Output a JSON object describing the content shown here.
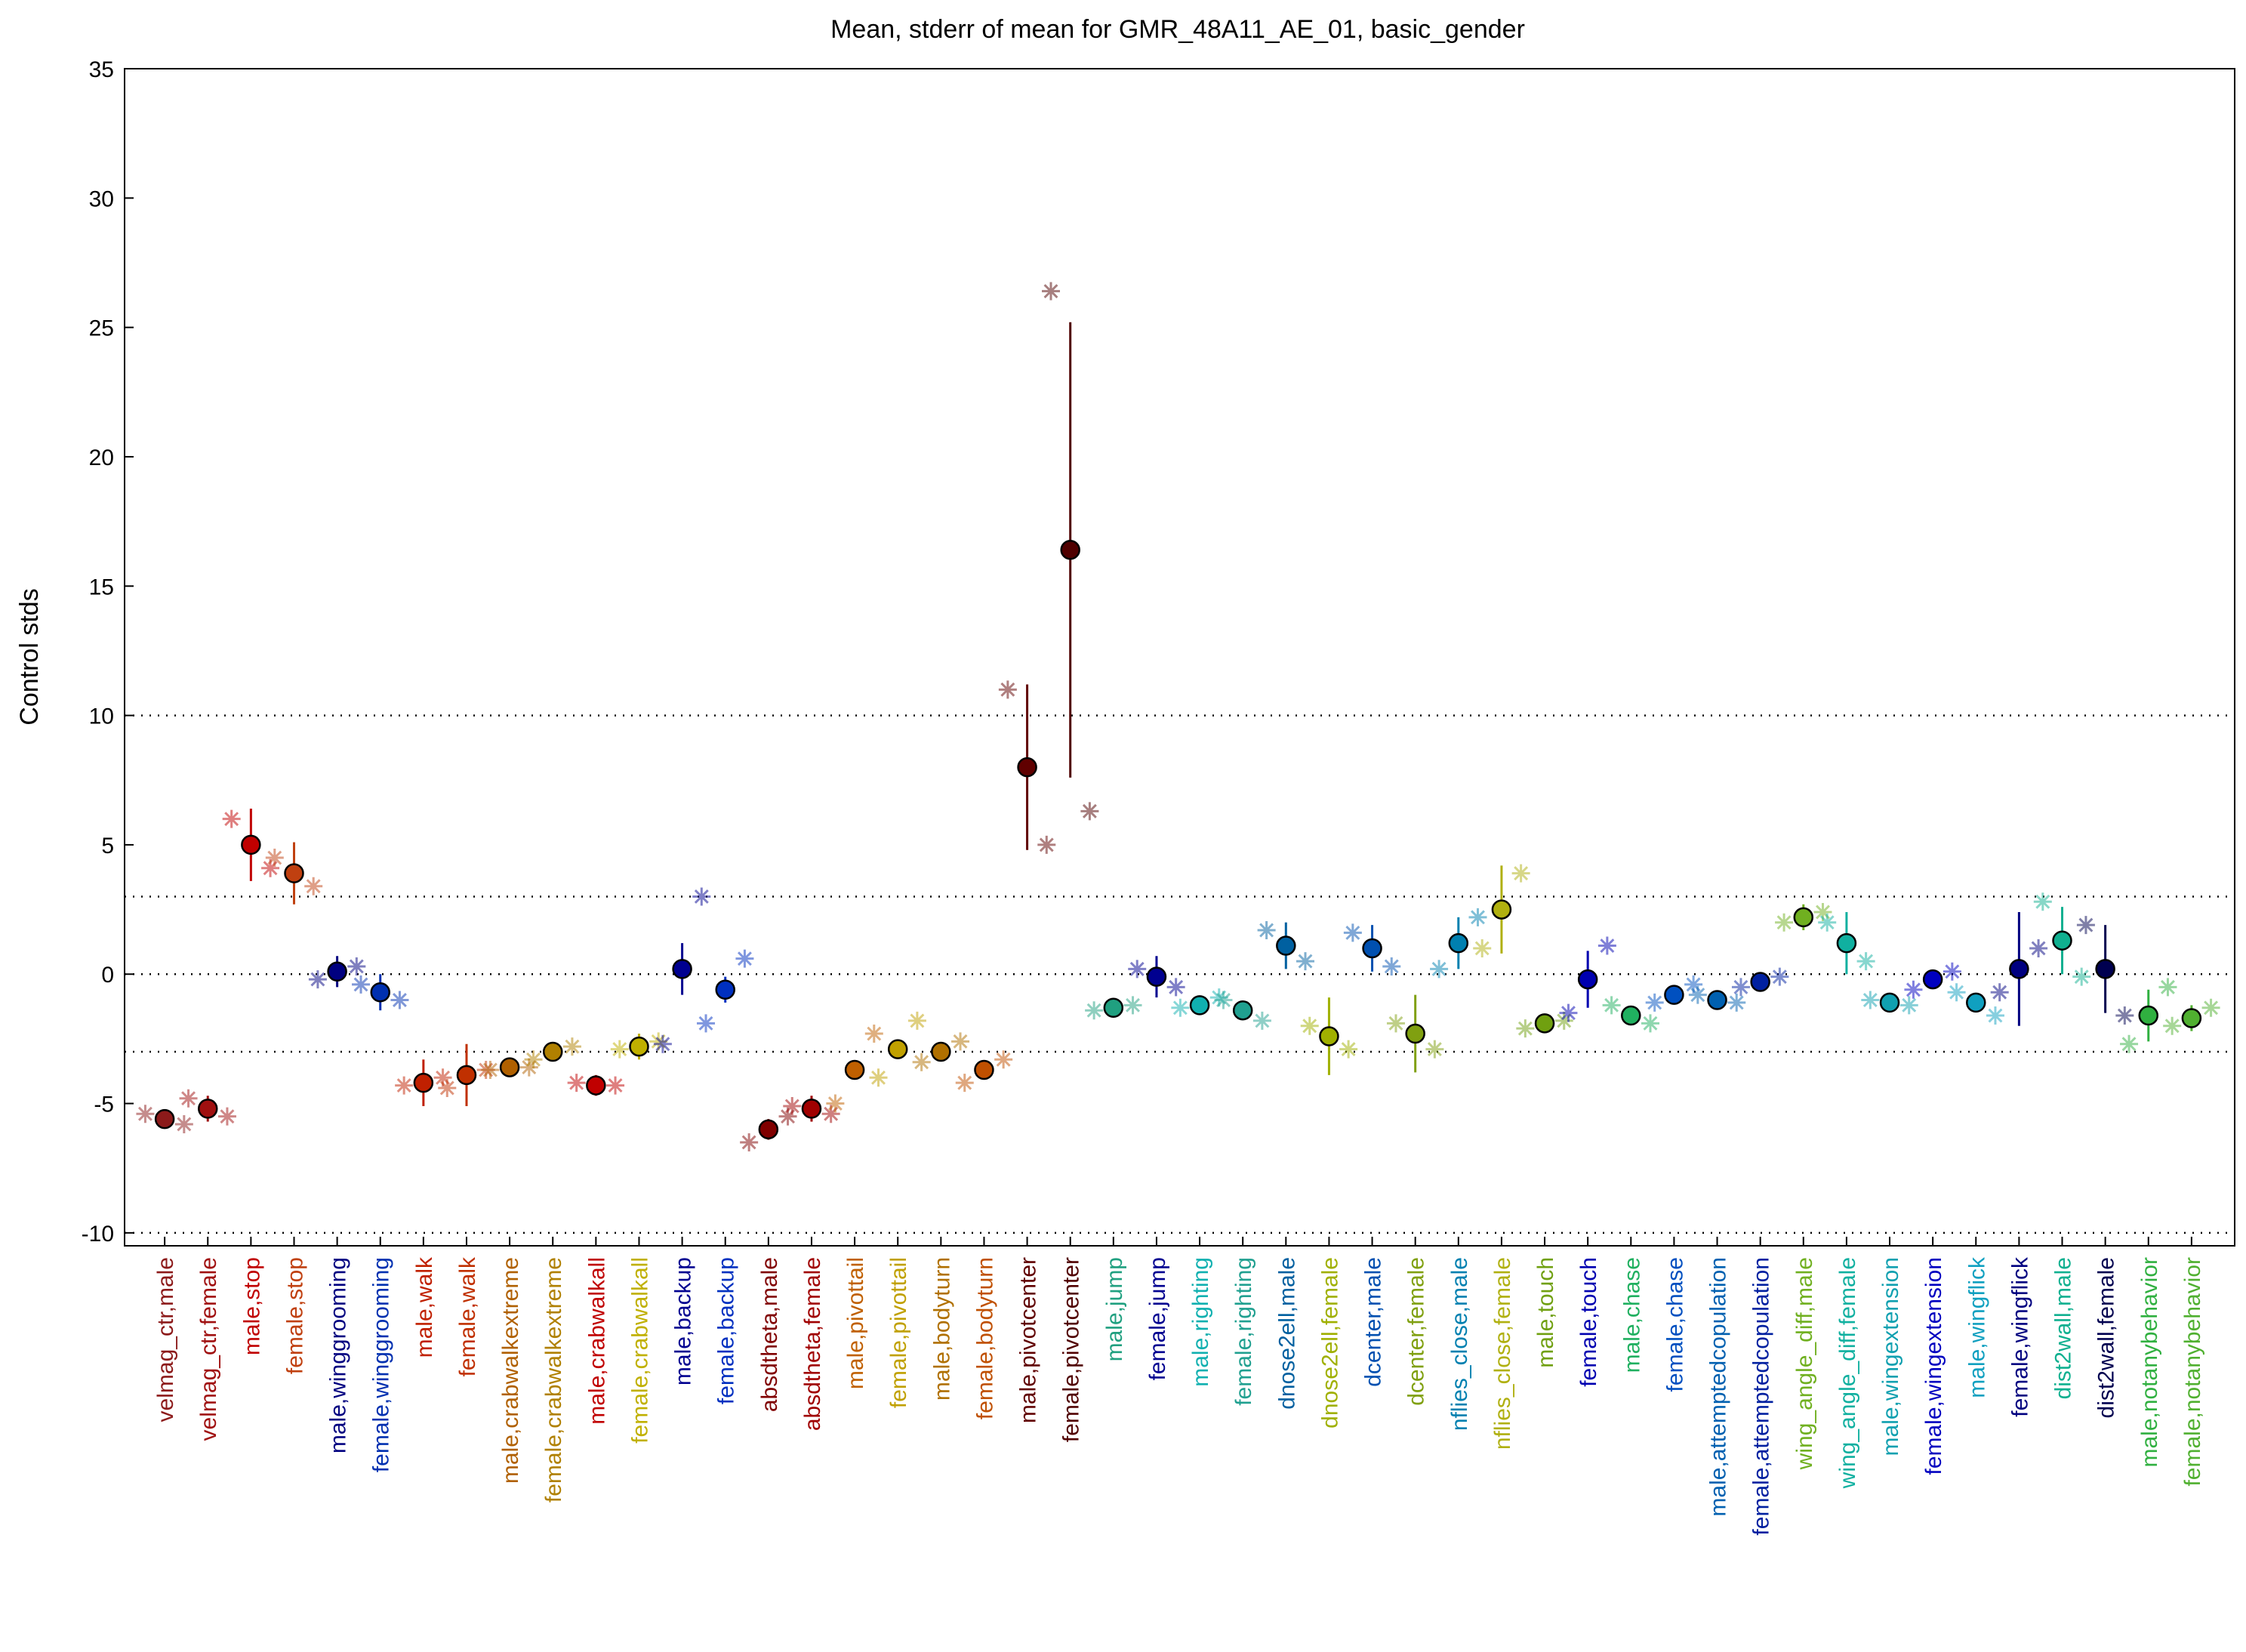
{
  "chart_data": {
    "type": "errorbar",
    "title": "Mean, stderr of mean for GMR_48A11_AE_01, basic_gender",
    "ylabel": "Control stds",
    "ylim": [
      -10.5,
      35
    ],
    "yticks": [
      -10,
      -5,
      0,
      5,
      10,
      15,
      20,
      25,
      30,
      35
    ],
    "hlines": [
      -10,
      -3,
      0,
      3,
      10
    ],
    "categories": [
      "velmag_ctr,male",
      "velmag_ctr,female",
      "male,stop",
      "female,stop",
      "male,winggrooming",
      "female,winggrooming",
      "male,walk",
      "female,walk",
      "male,crabwalkextreme",
      "female,crabwalkextreme",
      "male,crabwalkall",
      "female,crabwalkall",
      "male,backup",
      "female,backup",
      "absdtheta,male",
      "absdtheta,female",
      "male,pivottail",
      "female,pivottail",
      "male,bodyturn",
      "female,bodyturn",
      "male,pivotcenter",
      "female,pivotcenter",
      "male,jump",
      "female,jump",
      "male,righting",
      "female,righting",
      "dnose2ell,male",
      "dnose2ell,female",
      "dcenter,male",
      "dcenter,female",
      "nflies_close,male",
      "nflies_close,female",
      "male,touch",
      "female,touch",
      "male,chase",
      "female,chase",
      "male,attemptedcopulation",
      "female,attemptedcopulation",
      "wing_angle_diff,male",
      "wing_angle_diff,female",
      "male,wingextension",
      "female,wingextension",
      "male,wingflick",
      "female,wingflick",
      "dist2wall,male",
      "dist2wall,female",
      "male,notanybehavior",
      "female,notanybehavior"
    ],
    "colors": [
      "#8c1a1a",
      "#a01010",
      "#c00000",
      "#c04010",
      "#000080",
      "#0030b0",
      "#c02000",
      "#c03000",
      "#b06000",
      "#b08000",
      "#c00000",
      "#c0b000",
      "#000090",
      "#0030c0",
      "#800000",
      "#a00000",
      "#c06000",
      "#c0a000",
      "#b07000",
      "#c05000",
      "#600000",
      "#500000",
      "#20a080",
      "#000090",
      "#10b0b0",
      "#20a090",
      "#0060a0",
      "#a0b000",
      "#0050b0",
      "#80a010",
      "#0080b0",
      "#b0b010",
      "#70a010",
      "#0000b0",
      "#20b060",
      "#0050c0",
      "#0060b0",
      "#0020a0",
      "#70b020",
      "#10b0a0",
      "#10a0b0",
      "#0000c0",
      "#10a0c0",
      "#000080",
      "#10b090",
      "#000050",
      "#30b040",
      "#50b030"
    ],
    "values": [
      -5.6,
      -5.2,
      5.0,
      3.9,
      0.1,
      -0.7,
      -4.2,
      -3.9,
      -3.6,
      -3.0,
      -4.3,
      -2.8,
      0.2,
      -0.6,
      -6.0,
      -5.2,
      -3.7,
      -2.9,
      -3.0,
      -3.7,
      8.0,
      16.4,
      -1.3,
      -0.1,
      -1.2,
      -1.4,
      1.1,
      -2.4,
      1.0,
      -2.3,
      1.2,
      2.5,
      -1.9,
      -0.2,
      -1.6,
      -0.8,
      -1.0,
      -0.3,
      2.2,
      1.2,
      -1.1,
      -0.2,
      -1.1,
      0.2,
      1.3,
      0.2,
      -1.6,
      -1.7
    ],
    "errors": [
      0.3,
      0.5,
      1.4,
      1.2,
      0.6,
      0.7,
      0.9,
      1.2,
      0.3,
      0.3,
      0.4,
      0.5,
      1.0,
      0.5,
      0.4,
      0.5,
      0.2,
      0.2,
      0.2,
      0.3,
      3.2,
      8.8,
      0.3,
      0.8,
      0.2,
      0.3,
      0.9,
      1.5,
      0.9,
      1.5,
      1.0,
      1.7,
      0.2,
      1.1,
      0.2,
      0.2,
      0.2,
      0.2,
      0.5,
      1.2,
      0.2,
      0.2,
      0.3,
      2.2,
      1.3,
      1.7,
      1.0,
      0.5
    ],
    "points_left": [
      -5.4,
      -4.8,
      6.0,
      4.5,
      -0.2,
      -0.4,
      -4.3,
      -4.4,
      -3.7,
      -3.3,
      -4.2,
      -2.9,
      -2.7,
      -1.9,
      -6.5,
      -5.1,
      -5.0,
      -4.0,
      -3.4,
      -4.2,
      11.0,
      26.4,
      -1.4,
      0.2,
      -1.3,
      -1.0,
      1.7,
      -2.0,
      1.6,
      -1.9,
      0.2,
      1.0,
      -2.1,
      -1.5,
      -1.2,
      -1.1,
      -0.8,
      -0.5,
      2.0,
      2.0,
      -1.0,
      -0.6,
      -0.7,
      -0.7,
      2.8,
      1.9,
      -2.7,
      -2.0
    ],
    "points_right": [
      -5.8,
      -5.5,
      4.1,
      3.4,
      0.3,
      -1.0,
      -4.0,
      -3.7,
      -3.6,
      -2.8,
      -4.3,
      -2.6,
      3.0,
      0.6,
      -5.5,
      -5.4,
      -2.3,
      -1.8,
      -2.6,
      -3.3,
      5.0,
      6.3,
      -1.2,
      -0.5,
      -0.9,
      -1.8,
      0.5,
      -2.9,
      0.3,
      -2.9,
      2.2,
      3.9,
      -1.8,
      1.1,
      -1.9,
      -0.4,
      -1.1,
      -0.1,
      2.4,
      0.5,
      -1.2,
      0.1,
      -1.6,
      1.0,
      -0.1,
      -1.6,
      -0.5,
      -1.3
    ]
  }
}
